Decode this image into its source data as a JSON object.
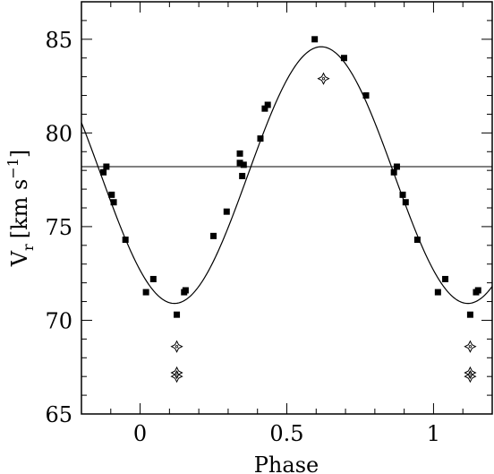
{
  "chart_data": {
    "type": "scatter",
    "xlabel": "Phase",
    "ylabel_main": "V",
    "ylabel_sub": "r",
    "ylabel_units": "[km s",
    "ylabel_exp": "−1",
    "ylabel_close": "]",
    "xlim": [
      -0.2,
      1.2
    ],
    "ylim": [
      65,
      87
    ],
    "x_ticks": [
      {
        "value": 0,
        "label": "0"
      },
      {
        "value": 0.5,
        "label": "0.5"
      },
      {
        "value": 1,
        "label": "1"
      }
    ],
    "y_ticks": [
      {
        "value": 65,
        "label": "65"
      },
      {
        "value": 70,
        "label": "70"
      },
      {
        "value": 75,
        "label": "75"
      },
      {
        "value": 80,
        "label": "80"
      },
      {
        "value": 85,
        "label": "85"
      }
    ],
    "x_minor_step": 0.1,
    "y_minor_step": 1,
    "mean_line": 78.2,
    "fit_curve": {
      "gamma": 77.75,
      "amplitude": 6.85,
      "phase_of_max": 0.617
    },
    "series": [
      {
        "marker": "filled-square",
        "points": [
          [
            -0.125,
            77.9
          ],
          [
            -0.115,
            78.2
          ],
          [
            -0.097,
            76.7
          ],
          [
            -0.09,
            76.3
          ],
          [
            -0.05,
            74.3
          ],
          [
            0.02,
            71.5
          ],
          [
            0.045,
            72.2
          ],
          [
            0.125,
            70.3
          ],
          [
            0.15,
            71.5
          ],
          [
            0.155,
            71.6
          ],
          [
            0.25,
            74.5
          ],
          [
            0.295,
            75.8
          ],
          [
            0.34,
            78.9
          ],
          [
            0.34,
            78.4
          ],
          [
            0.348,
            77.7
          ],
          [
            0.353,
            78.3
          ],
          [
            0.41,
            79.7
          ],
          [
            0.425,
            81.3
          ],
          [
            0.435,
            81.5
          ],
          [
            0.595,
            85.0
          ],
          [
            0.695,
            84.0
          ],
          [
            0.77,
            82.0
          ],
          [
            0.865,
            77.9
          ],
          [
            0.875,
            78.2
          ],
          [
            0.895,
            76.7
          ],
          [
            0.905,
            76.3
          ],
          [
            0.945,
            74.3
          ],
          [
            1.015,
            71.5
          ],
          [
            1.04,
            72.2
          ],
          [
            1.125,
            70.3
          ],
          [
            1.145,
            71.5
          ],
          [
            1.152,
            71.6
          ]
        ]
      },
      {
        "marker": "open-star",
        "points": [
          [
            0.625,
            82.9
          ],
          [
            0.125,
            68.6
          ],
          [
            0.125,
            67.2
          ],
          [
            0.125,
            67.0
          ],
          [
            1.125,
            68.6
          ],
          [
            1.125,
            67.2
          ],
          [
            1.125,
            67.0
          ]
        ]
      }
    ]
  }
}
